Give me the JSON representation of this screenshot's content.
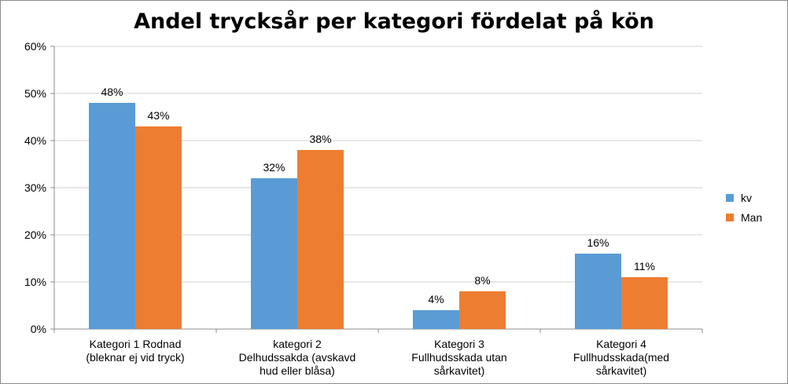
{
  "chart_data": {
    "type": "bar",
    "title": "Andel trycksår per kategori fördelat på kön",
    "xlabel": "",
    "ylabel": "",
    "ylim": [
      0,
      60
    ],
    "y_ticks": [
      "0%",
      "10%",
      "20%",
      "30%",
      "40%",
      "50%",
      "60%"
    ],
    "y_tick_values": [
      0,
      10,
      20,
      30,
      40,
      50,
      60
    ],
    "grid": true,
    "legend_position": "right",
    "categories": [
      [
        "Kategori 1 Rodnad",
        "(bleknar ej vid tryck)"
      ],
      [
        "kategori 2",
        "Delhudssakda (avskavd",
        "hud eller blåsa)"
      ],
      [
        "Kategori 3",
        "Fullhudsskada utan",
        "sårkavitet)"
      ],
      [
        "Kategori 4",
        "Fullhudsskada(med",
        "sårkavitet)"
      ]
    ],
    "series": [
      {
        "name": "kv",
        "color": "#5b9bd5",
        "values": [
          48,
          32,
          4,
          16
        ],
        "labels": [
          "48%",
          "32%",
          "4%",
          "16%"
        ]
      },
      {
        "name": "Man",
        "color": "#ed7d31",
        "values": [
          43,
          38,
          8,
          11
        ],
        "labels": [
          "43%",
          "38%",
          "8%",
          "11%"
        ]
      }
    ]
  }
}
